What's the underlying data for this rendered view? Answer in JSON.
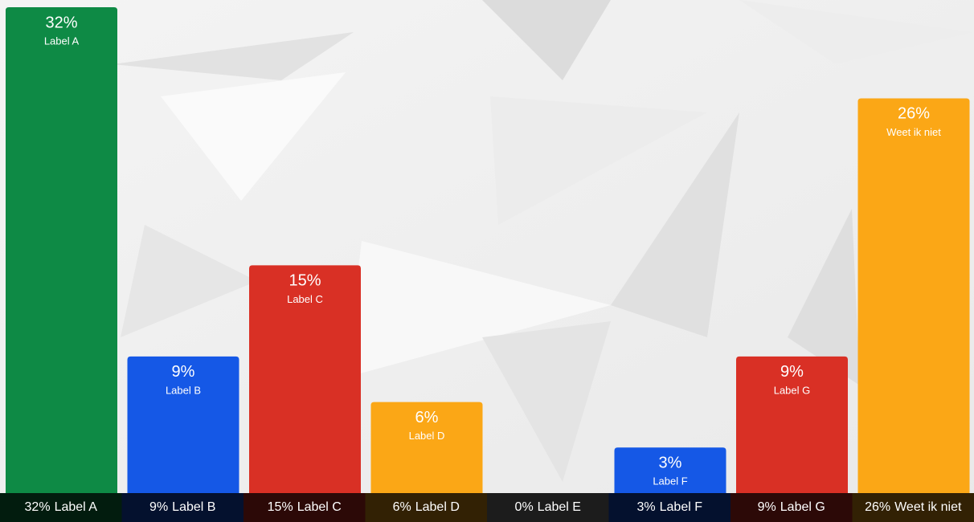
{
  "chart_data": {
    "type": "bar",
    "categories": [
      "Label A",
      "Label B",
      "Label C",
      "Label D",
      "Label E",
      "Label F",
      "Label G",
      "Weet ik niet"
    ],
    "values": [
      32,
      9,
      15,
      6,
      0,
      3,
      9,
      26
    ],
    "value_labels": [
      "32%",
      "9%",
      "15%",
      "6%",
      "0%",
      "3%",
      "9%",
      "26%"
    ],
    "colors": [
      "#0e8a45",
      "#1558e6",
      "#d93025",
      "#fba716",
      "#8a8a8a",
      "#1558e6",
      "#d93025",
      "#fba716"
    ],
    "ylim": [
      0,
      32
    ]
  }
}
